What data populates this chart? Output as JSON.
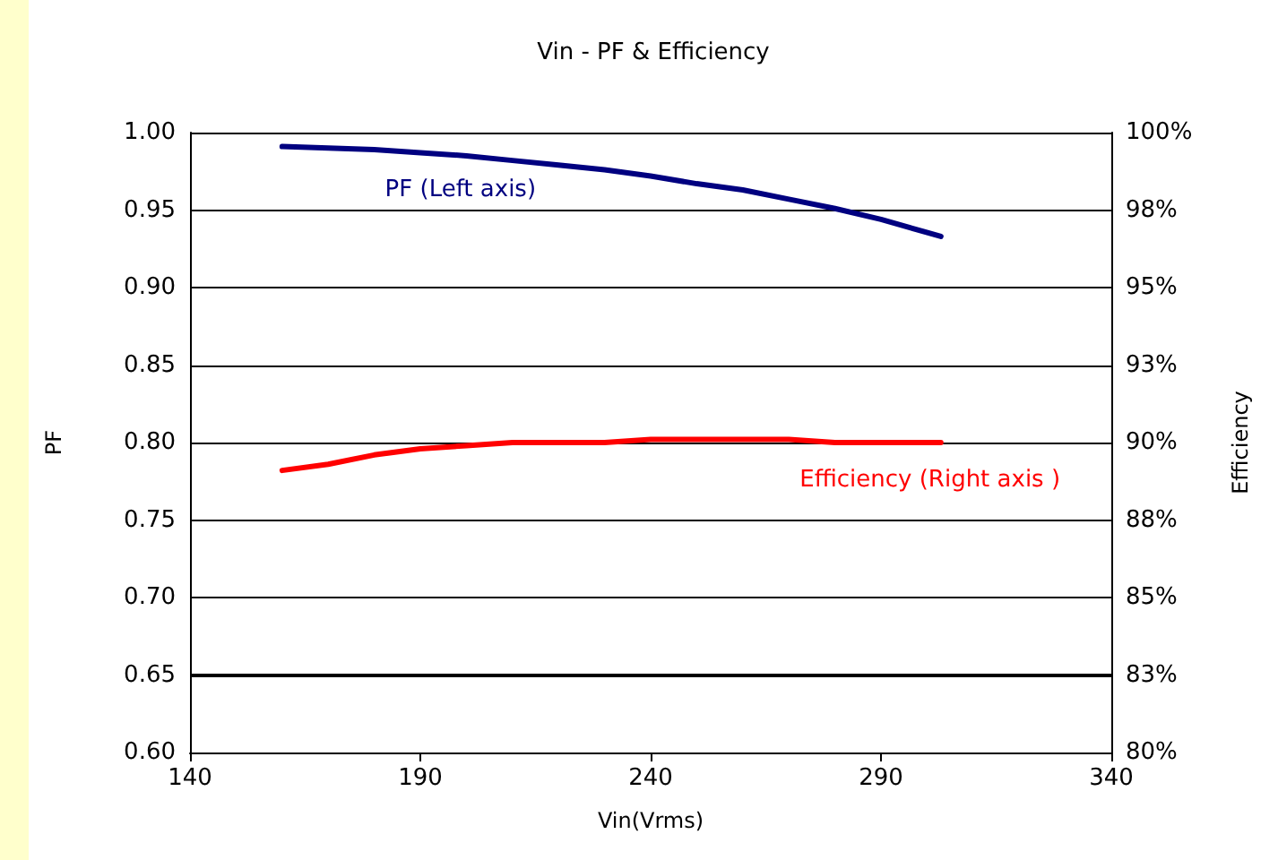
{
  "chart_data": {
    "type": "line",
    "title": "Vin - PF & Efficiency",
    "xlabel": "Vin(Vrms)",
    "ylabel": "PF",
    "y2label": "Efficiency",
    "x": [
      160,
      170,
      180,
      190,
      200,
      210,
      220,
      230,
      240,
      250,
      260,
      270,
      280,
      290,
      303
    ],
    "series": [
      {
        "name": "PF (Left axis)",
        "color": "#000080",
        "values": [
          0.991,
          0.99,
          0.989,
          0.987,
          0.985,
          0.982,
          0.979,
          0.976,
          0.972,
          0.967,
          0.963,
          0.957,
          0.951,
          0.944,
          0.933
        ]
      },
      {
        "name": "Efficiency (Right axis )",
        "color": "#ff0000",
        "axis": "y2",
        "values": [
          89.1,
          89.3,
          89.6,
          89.8,
          89.9,
          90.0,
          90.0,
          90.0,
          90.1,
          90.1,
          90.1,
          90.1,
          90.0,
          90.0,
          90.0
        ]
      }
    ],
    "xlim": [
      140,
      340
    ],
    "xticks": [
      140,
      190,
      240,
      290,
      340
    ],
    "ylim": [
      0.6,
      1.0
    ],
    "yticks": [
      {
        "value": 0.6,
        "label": "0.60"
      },
      {
        "value": 0.65,
        "label": "0.65"
      },
      {
        "value": 0.7,
        "label": "0.70"
      },
      {
        "value": 0.75,
        "label": "0.75"
      },
      {
        "value": 0.8,
        "label": "0.80"
      },
      {
        "value": 0.85,
        "label": "0.85"
      },
      {
        "value": 0.9,
        "label": "0.90"
      },
      {
        "value": 0.95,
        "label": "0.95"
      },
      {
        "value": 1.0,
        "label": "1.00"
      }
    ],
    "y2lim": [
      80,
      100
    ],
    "y2ticks": [
      {
        "value": 80,
        "label": "80%"
      },
      {
        "value": 82.5,
        "label": "83%"
      },
      {
        "value": 85,
        "label": "85%"
      },
      {
        "value": 87.5,
        "label": "88%"
      },
      {
        "value": 90,
        "label": "90%"
      },
      {
        "value": 92.5,
        "label": "93%"
      },
      {
        "value": 95,
        "label": "95%"
      },
      {
        "value": 97.5,
        "label": "98%"
      },
      {
        "value": 100,
        "label": "100%"
      }
    ],
    "grid": "y",
    "legend": false,
    "marker": "none",
    "line_style": "solid"
  }
}
